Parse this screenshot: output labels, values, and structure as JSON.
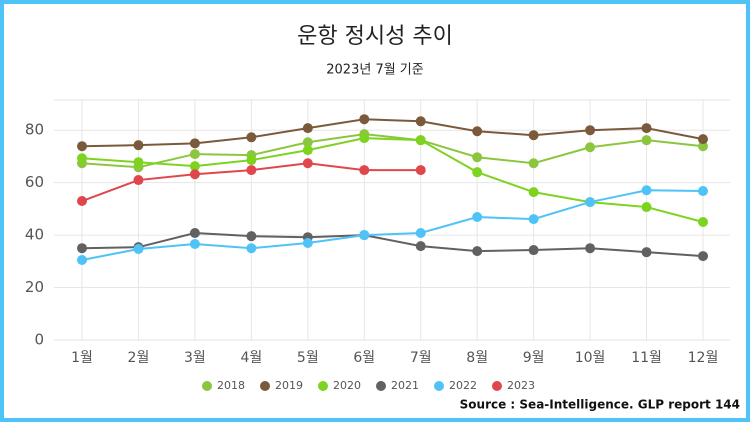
{
  "chart_data": {
    "type": "line",
    "title": "운항 정시성 추이",
    "subtitle": "2023년 7월 기준",
    "source": "Source : Sea-Intelligence. GLP report 144",
    "categories": [
      "1월",
      "2월",
      "3월",
      "4월",
      "5월",
      "6월",
      "7월",
      "8월",
      "9월",
      "10월",
      "11월",
      "12월"
    ],
    "series": [
      {
        "name": "2018",
        "color": "#8cc63f",
        "values": [
          67.4,
          65.9,
          70.9,
          70.5,
          75.4,
          78.5,
          76.2,
          69.7,
          67.4,
          73.5,
          76.2,
          73.9
        ]
      },
      {
        "name": "2019",
        "color": "#7b5a3c",
        "values": [
          73.9,
          74.3,
          75.0,
          77.3,
          80.8,
          84.2,
          83.4,
          79.6,
          78.1,
          80.0,
          80.8,
          76.6
        ]
      },
      {
        "name": "2020",
        "color": "#7ed321",
        "values": [
          69.3,
          67.8,
          66.3,
          68.6,
          72.4,
          77.0,
          76.2,
          64.0,
          56.4,
          52.6,
          50.7,
          45.0
        ]
      },
      {
        "name": "2021",
        "color": "#616161",
        "values": [
          35.0,
          35.4,
          40.8,
          39.6,
          39.2,
          40.0,
          35.8,
          33.9,
          34.3,
          35.0,
          33.5,
          32.0
        ]
      },
      {
        "name": "2022",
        "color": "#4fc3f7",
        "values": [
          30.5,
          34.7,
          36.6,
          35.0,
          37.0,
          40.0,
          40.8,
          46.9,
          46.1,
          52.6,
          57.1,
          56.8
        ]
      },
      {
        "name": "2023",
        "color": "#e0474c",
        "values": [
          53.0,
          61.0,
          63.2,
          64.8,
          67.4,
          64.8,
          64.8,
          null,
          null,
          null,
          null,
          null
        ]
      }
    ],
    "ylim": [
      0,
      90
    ],
    "yticks": [
      0,
      20,
      40,
      60,
      80
    ],
    "grid": true,
    "legend": "bottom"
  }
}
